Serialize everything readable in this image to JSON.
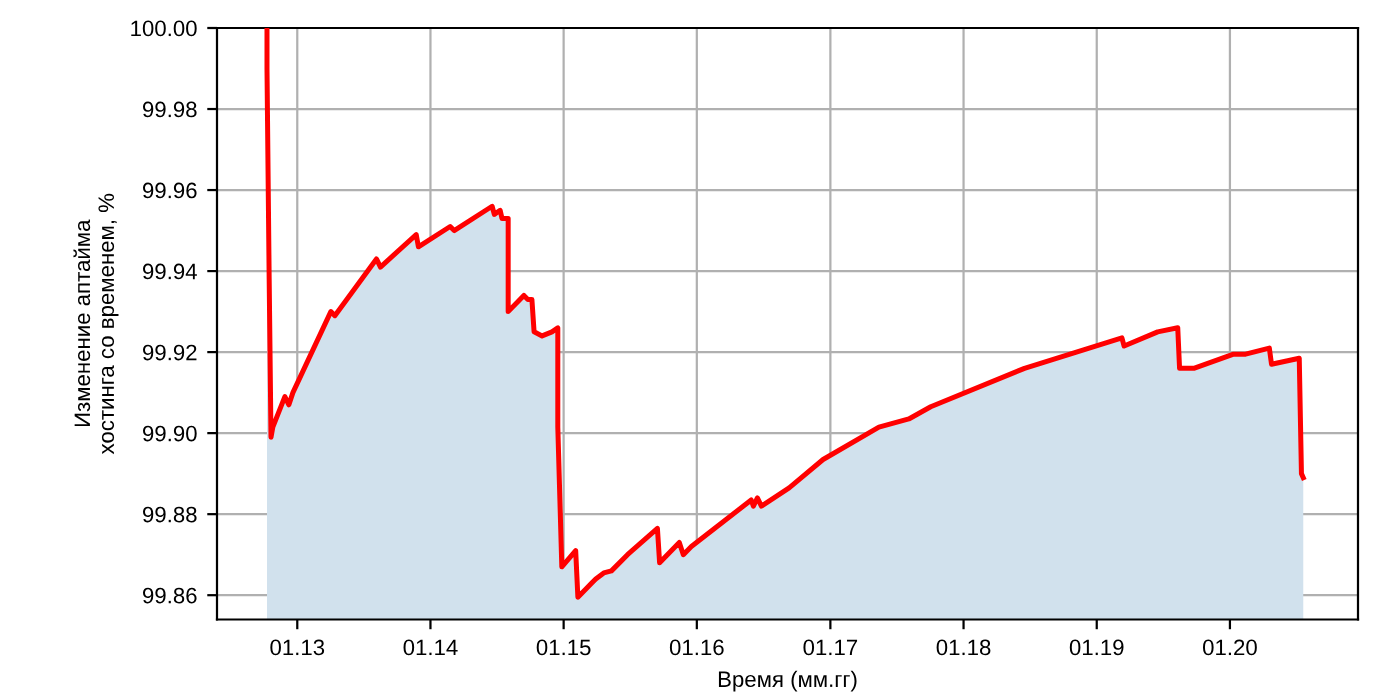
{
  "chart_data": {
    "type": "area",
    "xlabel": "Время (мм.гг)",
    "ylabel": "Изменение аптайма\nхостинга со временем, %",
    "x": [
      "2012-10-10",
      "2012-10-10",
      "2012-10-16",
      "2012-10-21",
      "2012-10-26",
      "2012-11-28",
      "2012-12-09",
      "2012-12-20",
      "2013-04-03",
      "2013-04-14",
      "2013-08-06",
      "2013-08-17",
      "2013-11-23",
      "2013-11-29",
      "2014-02-24",
      "2014-03-07",
      "2014-06-19",
      "2014-06-25",
      "2014-07-11",
      "2014-07-16",
      "2014-08-02",
      "2014-08-02",
      "2014-09-14",
      "2014-09-25",
      "2014-10-06",
      "2014-10-12",
      "2014-11-03",
      "2014-11-30",
      "2014-12-16",
      "2014-12-16",
      "2014-12-27",
      "2015-02-03",
      "2015-02-09",
      "2015-03-19",
      "2015-03-30",
      "2015-04-21",
      "2015-05-12",
      "2015-06-25",
      "2015-09-15",
      "2015-09-21",
      "2015-11-14",
      "2015-11-25",
      "2015-12-17",
      "2016-05-29",
      "2016-06-04",
      "2016-06-15",
      "2016-06-26",
      "2016-09-10",
      "2016-12-12",
      "2017-05-14",
      "2017-08-04",
      "2017-10-03",
      "2018-06-17",
      "2019-03-11",
      "2019-03-17",
      "2019-06-17",
      "2019-08-11",
      "2019-08-16",
      "2019-09-24",
      "2020-01-11",
      "2020-02-13",
      "2020-04-18",
      "2020-04-24",
      "2020-07-09",
      "2020-07-15",
      "2020-07-20"
    ],
    "series": [
      {
        "color": "#ff0000",
        "values": [
          100.0,
          99.99,
          99.938,
          99.899,
          99.9015,
          99.909,
          99.907,
          99.91,
          99.93,
          99.929,
          99.943,
          99.941,
          99.949,
          99.946,
          99.951,
          99.95,
          99.956,
          99.954,
          99.955,
          99.953,
          99.953,
          99.93,
          99.934,
          99.933,
          99.933,
          99.925,
          99.924,
          99.925,
          99.926,
          99.9015,
          99.867,
          99.871,
          99.8595,
          99.863,
          99.864,
          99.8655,
          99.866,
          99.87,
          99.8765,
          99.868,
          99.873,
          99.87,
          99.872,
          99.8835,
          99.882,
          99.884,
          99.882,
          99.8865,
          99.8935,
          99.9015,
          99.9035,
          99.9065,
          99.916,
          99.9235,
          99.9215,
          99.925,
          99.926,
          99.916,
          99.916,
          99.9195,
          99.9195,
          99.921,
          99.917,
          99.9185,
          99.89,
          99.889
        ]
      }
    ],
    "xlim": [
      "2012-05-26",
      "2020-12-17"
    ],
    "ylim": [
      99.854,
      100.0
    ],
    "xticks": [
      {
        "value": "2013-01-01",
        "label": "01.13"
      },
      {
        "value": "2014-01-01",
        "label": "01.14"
      },
      {
        "value": "2015-01-01",
        "label": "01.15"
      },
      {
        "value": "2016-01-01",
        "label": "01.16"
      },
      {
        "value": "2017-01-01",
        "label": "01.17"
      },
      {
        "value": "2018-01-01",
        "label": "01.18"
      },
      {
        "value": "2019-01-01",
        "label": "01.19"
      },
      {
        "value": "2020-01-01",
        "label": "01.20"
      }
    ],
    "yticks": [
      {
        "value": 99.86,
        "label": "99.86"
      },
      {
        "value": 99.88,
        "label": "99.88"
      },
      {
        "value": 99.9,
        "label": "99.90"
      },
      {
        "value": 99.92,
        "label": "99.92"
      },
      {
        "value": 99.94,
        "label": "99.94"
      },
      {
        "value": 99.96,
        "label": "99.96"
      },
      {
        "value": 99.98,
        "label": "99.98"
      },
      {
        "value": 100.0,
        "label": "100.00"
      }
    ],
    "grid": true
  }
}
